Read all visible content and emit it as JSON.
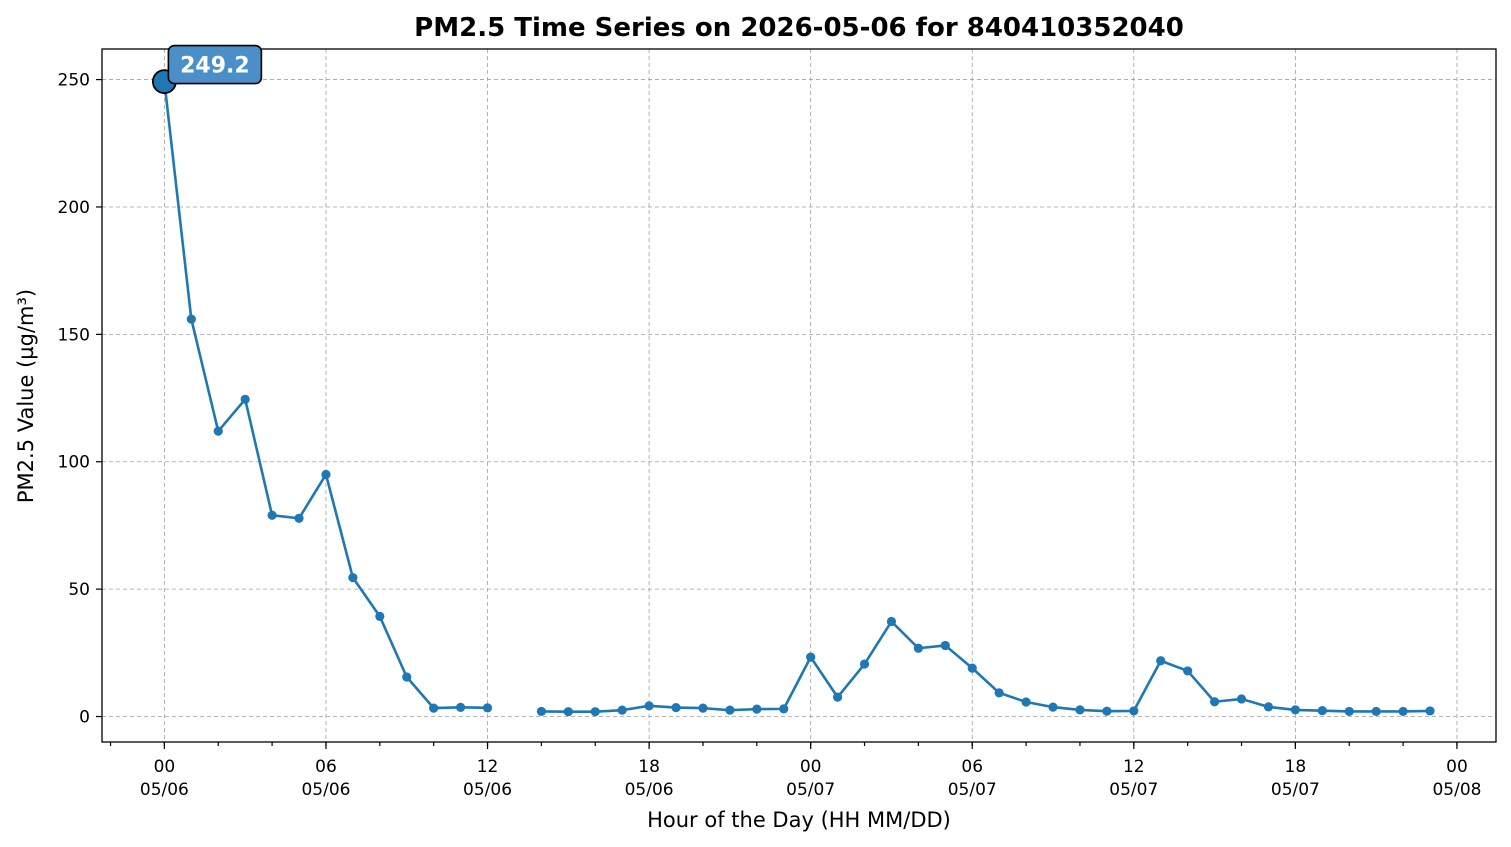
{
  "chart_data": {
    "type": "line",
    "title": "PM2.5 Time Series on 2026-05-06 for 840410352040",
    "xlabel": "Hour of the Day (HH MM/DD)",
    "ylabel": "PM2.5 Value (µg/m³)",
    "ylim": [
      -10,
      262
    ],
    "xlim": [
      "2026-05-05 21:41",
      "2026-05-08 01:27"
    ],
    "grid": true,
    "x_ticks": [
      {
        "time": "2026-05-06 00:00",
        "hour": "00",
        "date": "05/06"
      },
      {
        "time": "2026-05-06 06:00",
        "hour": "06",
        "date": "05/06"
      },
      {
        "time": "2026-05-06 12:00",
        "hour": "12",
        "date": "05/06"
      },
      {
        "time": "2026-05-06 18:00",
        "hour": "18",
        "date": "05/06"
      },
      {
        "time": "2026-05-07 00:00",
        "hour": "00",
        "date": "05/07"
      },
      {
        "time": "2026-05-07 06:00",
        "hour": "06",
        "date": "05/07"
      },
      {
        "time": "2026-05-07 12:00",
        "hour": "12",
        "date": "05/07"
      },
      {
        "time": "2026-05-07 18:00",
        "hour": "18",
        "date": "05/07"
      },
      {
        "time": "2026-05-08 00:00",
        "hour": "00",
        "date": "05/08"
      }
    ],
    "y_ticks": [
      0,
      50,
      100,
      150,
      200,
      250
    ],
    "peak": {
      "time": "2026-05-06 00:00",
      "label": "249.2"
    },
    "series": [
      {
        "color": "#1f77b4",
        "points": [
          {
            "time": "2026-05-06 00:00",
            "value": 249.2
          },
          {
            "time": "2026-05-06 01:00",
            "value": 156.0
          },
          {
            "time": "2026-05-06 02:00",
            "value": 112.0
          },
          {
            "time": "2026-05-06 03:00",
            "value": 124.5
          },
          {
            "time": "2026-05-06 04:00",
            "value": 79.0
          },
          {
            "time": "2026-05-06 05:00",
            "value": 77.8
          },
          {
            "time": "2026-05-06 06:00",
            "value": 95.0
          },
          {
            "time": "2026-05-06 07:00",
            "value": 54.5
          },
          {
            "time": "2026-05-06 08:00",
            "value": 39.3
          },
          {
            "time": "2026-05-06 09:00",
            "value": 15.5
          },
          {
            "time": "2026-05-06 10:00",
            "value": 3.3
          },
          {
            "time": "2026-05-06 11:00",
            "value": 3.6
          },
          {
            "time": "2026-05-06 12:00",
            "value": 3.4
          },
          {
            "time": "2026-05-06 13:00",
            "value": null
          },
          {
            "time": "2026-05-06 14:00",
            "value": 2.0
          },
          {
            "time": "2026-05-06 15:00",
            "value": 1.9
          },
          {
            "time": "2026-05-06 16:00",
            "value": 1.9
          },
          {
            "time": "2026-05-06 17:00",
            "value": 2.5
          },
          {
            "time": "2026-05-06 18:00",
            "value": 4.2
          },
          {
            "time": "2026-05-06 19:00",
            "value": 3.5
          },
          {
            "time": "2026-05-06 20:00",
            "value": 3.3
          },
          {
            "time": "2026-05-06 21:00",
            "value": 2.5
          },
          {
            "time": "2026-05-06 22:00",
            "value": 2.9
          },
          {
            "time": "2026-05-06 23:00",
            "value": 3.0
          },
          {
            "time": "2026-05-07 00:00",
            "value": 23.3
          },
          {
            "time": "2026-05-07 01:00",
            "value": 7.6
          },
          {
            "time": "2026-05-07 02:00",
            "value": 20.6
          },
          {
            "time": "2026-05-07 03:00",
            "value": 37.3
          },
          {
            "time": "2026-05-07 04:00",
            "value": 26.8
          },
          {
            "time": "2026-05-07 05:00",
            "value": 27.9
          },
          {
            "time": "2026-05-07 06:00",
            "value": 19.0
          },
          {
            "time": "2026-05-07 07:00",
            "value": 9.3
          },
          {
            "time": "2026-05-07 08:00",
            "value": 5.7
          },
          {
            "time": "2026-05-07 09:00",
            "value": 3.7
          },
          {
            "time": "2026-05-07 10:00",
            "value": 2.6
          },
          {
            "time": "2026-05-07 11:00",
            "value": 2.1
          },
          {
            "time": "2026-05-07 12:00",
            "value": 2.2
          },
          {
            "time": "2026-05-07 13:00",
            "value": 21.9
          },
          {
            "time": "2026-05-07 14:00",
            "value": 17.9
          },
          {
            "time": "2026-05-07 15:00",
            "value": 5.8
          },
          {
            "time": "2026-05-07 16:00",
            "value": 6.9
          },
          {
            "time": "2026-05-07 17:00",
            "value": 3.8
          },
          {
            "time": "2026-05-07 18:00",
            "value": 2.6
          },
          {
            "time": "2026-05-07 19:00",
            "value": 2.3
          },
          {
            "time": "2026-05-07 20:00",
            "value": 2.0
          },
          {
            "time": "2026-05-07 21:00",
            "value": 2.0
          },
          {
            "time": "2026-05-07 22:00",
            "value": 2.0
          },
          {
            "time": "2026-05-07 23:00",
            "value": 2.2
          }
        ]
      }
    ]
  }
}
